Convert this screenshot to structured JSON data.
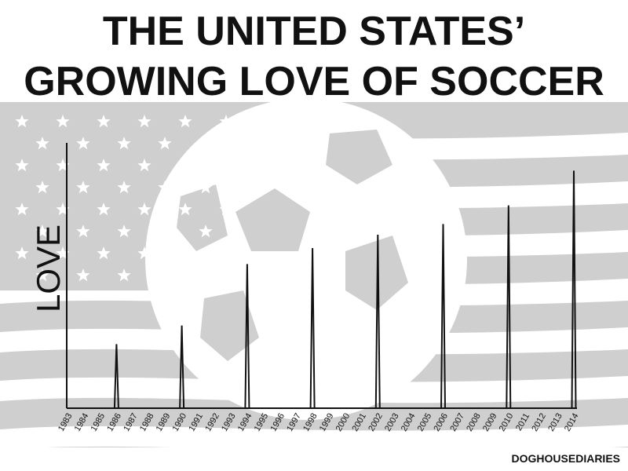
{
  "title_line1": "THE UNITED STATES’",
  "title_line2": "GROWING LOVE OF SOCCER",
  "credit": "DOGHOUSEDIARIES",
  "colors": {
    "background_art": "#cfcfcf",
    "line": "#111111"
  },
  "chart_data": {
    "type": "line",
    "title": "THE UNITED STATES’ GROWING LOVE OF SOCCER",
    "xlabel": "",
    "ylabel": "LOVE",
    "x": [
      1983,
      1984,
      1985,
      1986,
      1987,
      1988,
      1989,
      1990,
      1991,
      1992,
      1993,
      1994,
      1995,
      1996,
      1997,
      1998,
      1999,
      2000,
      2001,
      2002,
      2003,
      2004,
      2005,
      2006,
      2007,
      2008,
      2009,
      2010,
      2011,
      2012,
      2013,
      2014
    ],
    "series": [
      {
        "values": [
          0,
          0,
          0,
          24,
          0,
          0,
          0,
          31,
          0,
          0,
          0,
          54,
          0,
          0,
          0,
          60,
          0,
          0,
          0,
          65,
          0,
          0,
          0,
          69,
          0,
          0,
          0,
          76,
          0,
          0,
          0,
          89
        ]
      }
    ],
    "ylim": [
      0,
      100
    ],
    "grid": false,
    "background": "US flag with soccer ball silhouette"
  }
}
